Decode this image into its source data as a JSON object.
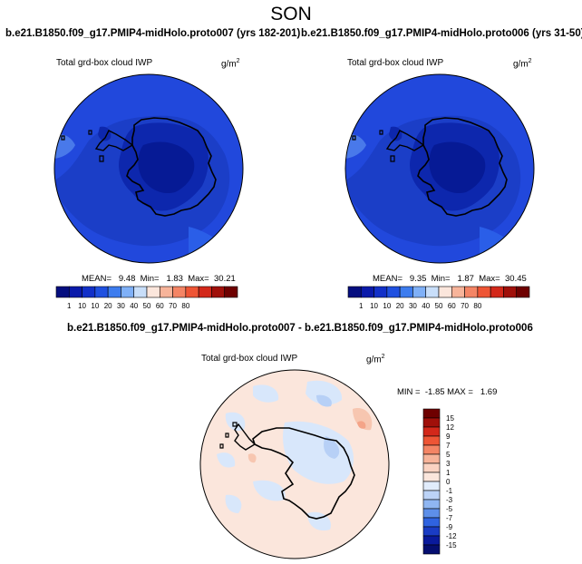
{
  "figure": {
    "season": "SON",
    "panels": [
      {
        "title": "b.e21.B1850.f09_g17.PMIP4-midHolo.proto007 (yrs 182-201)",
        "variable": "Total grd-box cloud IWP",
        "units": "g/m",
        "units_exp": "2",
        "stats": "MEAN=   9.48  Min=   1.83  Max=  30.21"
      },
      {
        "title": "b.e21.B1850.f09_g17.PMIP4-midHolo.proto006 (yrs 31-50)",
        "variable": "Total grd-box cloud IWP",
        "units": "g/m",
        "units_exp": "2",
        "stats": "MEAN=   9.35  Min=   1.87  Max=  30.45"
      },
      {
        "title": "b.e21.B1850.f09_g17.PMIP4-midHolo.proto007 - b.e21.B1850.f09_g17.PMIP4-midHolo.proto006",
        "variable": "Total grd-box cloud IWP",
        "units": "g/m",
        "units_exp": "2",
        "stats": "MIN =  -1.85 MAX =   1.69"
      }
    ],
    "colorbar_main": {
      "labels": [
        "1",
        "10",
        "10",
        "20",
        "30",
        "40",
        "50",
        "60",
        "70",
        "80"
      ],
      "colors": [
        "#050e7f",
        "#0a1aaa",
        "#1230c8",
        "#1f50e0",
        "#3d7cee",
        "#7fb0f7",
        "#c8def9",
        "#fbe6dc",
        "#f7b49a",
        "#f48565",
        "#ee5535",
        "#d3281a",
        "#a0100a",
        "#6e0000"
      ]
    },
    "colorbar_diff": {
      "labels": [
        "15",
        "12",
        "9",
        "7",
        "5",
        "3",
        "1",
        "0",
        "-1",
        "-3",
        "-5",
        "-7",
        "-9",
        "-12",
        "-15"
      ],
      "colors": [
        "#6e0000",
        "#a0100a",
        "#d3281a",
        "#ee5535",
        "#f48565",
        "#f7b49a",
        "#fad3c2",
        "#fbe6dc",
        "#e1ecfb",
        "#bcd3f7",
        "#8fb6f2",
        "#5d8fe9",
        "#2f63e0",
        "#1a3cc4",
        "#0a1a9c",
        "#050e70"
      ]
    },
    "map_colors": {
      "ocean_bg": "#2148dc",
      "ocean_far": "#2a5ee8",
      "mid_band": "#1b3ec7",
      "interior": "#0d27ad",
      "core": "#061a95",
      "light_patch": "#5b8ff0",
      "pale_patch": "#8fb8f4",
      "diff_bg": "#fbe6dc",
      "diff_blue": "#d8e7fb",
      "diff_blue2": "#b7d0f6",
      "diff_pink": "#f7c6b0"
    }
  }
}
